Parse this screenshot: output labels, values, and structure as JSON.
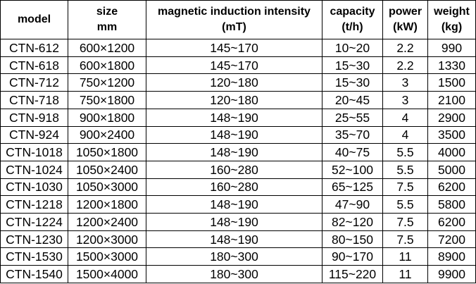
{
  "table": {
    "headers": [
      {
        "line1": "model",
        "line2": ""
      },
      {
        "line1": "size",
        "line2": "mm"
      },
      {
        "line1": "magnetic induction intensity",
        "line2": "(mT)"
      },
      {
        "line1": "capacity",
        "line2": "(t/h)"
      },
      {
        "line1": "power",
        "line2": "(kW)"
      },
      {
        "line1": "weight",
        "line2": "(kg)"
      }
    ],
    "rows": [
      [
        "CTN-612",
        "600×1200",
        "145~170",
        "10~20",
        "2.2",
        "990"
      ],
      [
        "CTN-618",
        "600×1800",
        "145~170",
        "15~30",
        "2.2",
        "1330"
      ],
      [
        "CTN-712",
        "750×1200",
        "120~180",
        "15~30",
        "3",
        "1500"
      ],
      [
        "CTN-718",
        "750×1800",
        "120~180",
        "20~45",
        "3",
        "2100"
      ],
      [
        "CTN-918",
        "900×1800",
        "148~190",
        "25~55",
        "4",
        "2900"
      ],
      [
        "CTN-924",
        "900×2400",
        "148~190",
        "35~70",
        "4",
        "3500"
      ],
      [
        "CTN-1018",
        "1050×1800",
        "148~190",
        "40~75",
        "5.5",
        "4000"
      ],
      [
        "CTN-1024",
        "1050×2400",
        "160~280",
        "52~100",
        "5.5",
        "5000"
      ],
      [
        "CTN-1030",
        "1050×3000",
        "160~280",
        "65~125",
        "7.5",
        "6200"
      ],
      [
        "CTN-1218",
        "1200×1800",
        "148~190",
        "47~90",
        "5.5",
        "5800"
      ],
      [
        "CTN-1224",
        "1200×2400",
        "148~190",
        "82~120",
        "7.5",
        "6200"
      ],
      [
        "CTN-1230",
        "1200×3000",
        "148~190",
        "80~150",
        "7.5",
        "7200"
      ],
      [
        "CTN-1530",
        "1500×3000",
        "180~300",
        "90~170",
        "11",
        "8900"
      ],
      [
        "CTN-1540",
        "1500×4000",
        "180~300",
        "115~220",
        "11",
        "9900"
      ]
    ]
  }
}
